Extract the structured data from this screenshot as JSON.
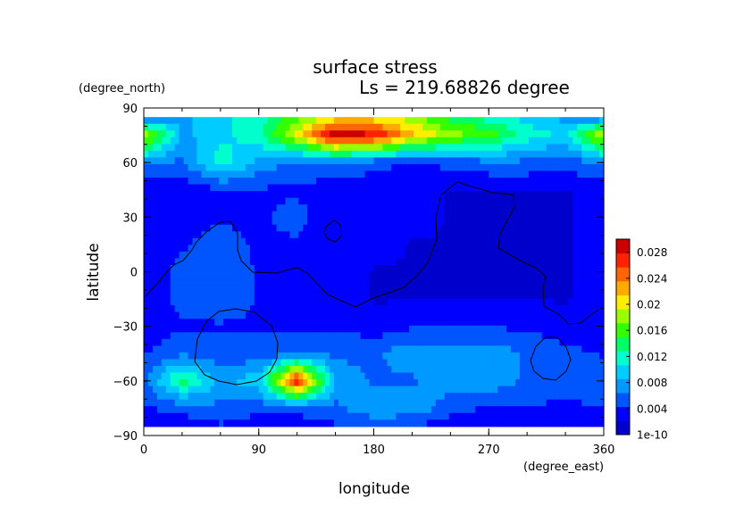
{
  "chart_data": {
    "type": "heatmap",
    "title": "surface stress",
    "subtitle": "Ls = 219.68826 degree",
    "xlabel": "longitude",
    "ylabel": "latitude",
    "x_unit": "(degree_east)",
    "y_unit": "(degree_north)",
    "xlim": [
      0,
      360
    ],
    "ylim": [
      -90,
      90
    ],
    "x_ticks": [
      "0",
      "90",
      "180",
      "270",
      "360"
    ],
    "y_ticks": [
      "90",
      "60",
      "30",
      "0",
      "−30",
      "−60",
      "−90"
    ],
    "x": [
      0,
      30,
      60,
      90,
      120,
      150,
      180,
      210,
      240,
      270,
      300,
      330,
      360
    ],
    "y": [
      85,
      75,
      60,
      45,
      30,
      15,
      0,
      -15,
      -30,
      -45,
      -60,
      -75,
      -85
    ],
    "z": [
      [
        0.006,
        0.008,
        0.01,
        0.012,
        0.016,
        0.02,
        0.02,
        0.018,
        0.014,
        0.012,
        0.01,
        0.008,
        0.006
      ],
      [
        0.02,
        0.008,
        0.01,
        0.012,
        0.02,
        0.03,
        0.028,
        0.022,
        0.018,
        0.016,
        0.012,
        0.01,
        0.02
      ],
      [
        0.007,
        0.006,
        0.012,
        0.008,
        0.006,
        0.006,
        0.005,
        0.004,
        0.005,
        0.006,
        0.006,
        0.005,
        0.007
      ],
      [
        0.003,
        0.003,
        0.004,
        0.004,
        0.004,
        0.003,
        0.003,
        0.003,
        0.002,
        0.002,
        0.002,
        0.002,
        0.003
      ],
      [
        0.003,
        0.004,
        0.004,
        0.004,
        0.005,
        0.003,
        0.003,
        0.003,
        0.002,
        0.002,
        0.002,
        0.002,
        0.003
      ],
      [
        0.003,
        0.004,
        0.005,
        0.004,
        0.004,
        0.003,
        0.003,
        0.002,
        0.002,
        0.002,
        0.002,
        0.002,
        0.003
      ],
      [
        0.003,
        0.005,
        0.006,
        0.004,
        0.004,
        0.003,
        0.002,
        0.002,
        0.002,
        0.002,
        0.002,
        0.002,
        0.003
      ],
      [
        0.003,
        0.005,
        0.006,
        0.004,
        0.003,
        0.003,
        0.002,
        0.002,
        0.002,
        0.002,
        0.002,
        0.002,
        0.003
      ],
      [
        0.003,
        0.004,
        0.004,
        0.004,
        0.004,
        0.004,
        0.003,
        0.004,
        0.004,
        0.004,
        0.004,
        0.003,
        0.003
      ],
      [
        0.004,
        0.006,
        0.005,
        0.005,
        0.006,
        0.006,
        0.006,
        0.008,
        0.008,
        0.008,
        0.006,
        0.005,
        0.004
      ],
      [
        0.006,
        0.014,
        0.008,
        0.01,
        0.028,
        0.008,
        0.006,
        0.006,
        0.008,
        0.008,
        0.006,
        0.005,
        0.006
      ],
      [
        0.004,
        0.005,
        0.006,
        0.005,
        0.005,
        0.006,
        0.008,
        0.008,
        0.005,
        0.004,
        0.004,
        0.004,
        0.004
      ],
      [
        0.003,
        0.003,
        0.004,
        0.003,
        0.003,
        0.004,
        0.005,
        0.004,
        0.003,
        0.003,
        0.003,
        0.003,
        0.003
      ]
    ],
    "colorbar": {
      "ticks": [
        "0.028",
        "0.024",
        "0.02",
        "0.016",
        "0.012",
        "0.008",
        "0.004",
        "1e-10"
      ],
      "min": 0,
      "max": 0.03
    },
    "colormap": [
      "#0000cc",
      "#0000ff",
      "#0055ff",
      "#0099ff",
      "#00ccff",
      "#00ffcc",
      "#00ff66",
      "#33ff00",
      "#99ff00",
      "#ffee00",
      "#ffaa00",
      "#ff6600",
      "#ff2200",
      "#cc0000"
    ],
    "overflow_color": "#ffffff",
    "contour_color": "#000000",
    "grid": false
  }
}
